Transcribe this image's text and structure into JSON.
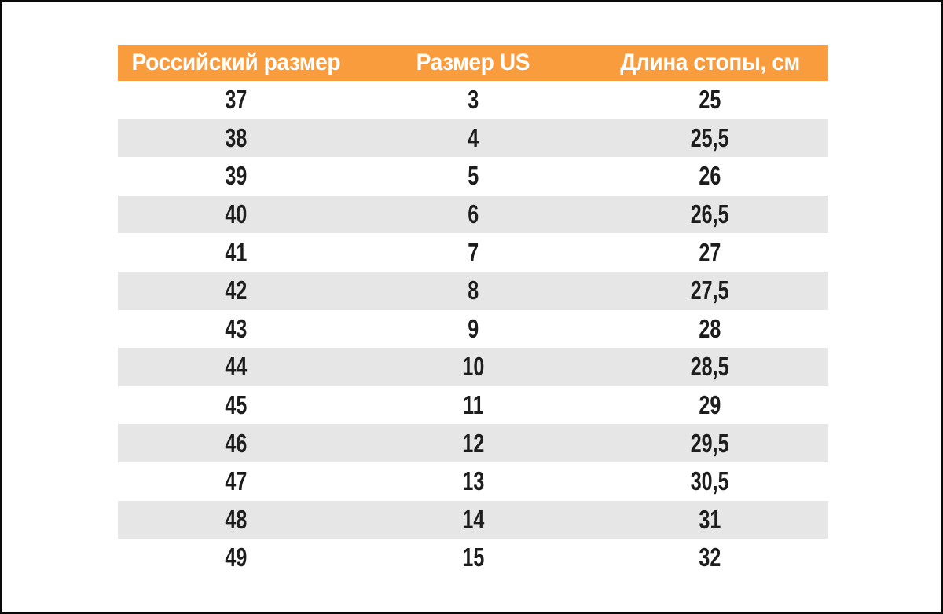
{
  "page": {
    "background_color": "#ffffff",
    "frame_color": "#0a0a0a"
  },
  "table": {
    "header": {
      "columns": [
        "Российский размер",
        "Размер US",
        "Длина стопы, см"
      ],
      "background_color": "#F99C3E",
      "text_color": "#ffffff"
    },
    "stripe_color": "#E7E6E6",
    "text_color": "#1d1d1d",
    "rows": [
      [
        "37",
        "3",
        "25"
      ],
      [
        "38",
        "4",
        "25,5"
      ],
      [
        "39",
        "5",
        "26"
      ],
      [
        "40",
        "6",
        "26,5"
      ],
      [
        "41",
        "7",
        "27"
      ],
      [
        "42",
        "8",
        "27,5"
      ],
      [
        "43",
        "9",
        "28"
      ],
      [
        "44",
        "10",
        "28,5"
      ],
      [
        "45",
        "11",
        "29"
      ],
      [
        "46",
        "12",
        "29,5"
      ],
      [
        "47",
        "13",
        "30,5"
      ],
      [
        "48",
        "14",
        "31"
      ],
      [
        "49",
        "15",
        "32"
      ]
    ]
  },
  "chart_data": {
    "type": "table",
    "columns": [
      "Российский размер",
      "Размер US",
      "Длина стопы, см"
    ],
    "rows": [
      [
        "37",
        "3",
        "25"
      ],
      [
        "38",
        "4",
        "25,5"
      ],
      [
        "39",
        "5",
        "26"
      ],
      [
        "40",
        "6",
        "26,5"
      ],
      [
        "41",
        "7",
        "27"
      ],
      [
        "42",
        "8",
        "27,5"
      ],
      [
        "43",
        "9",
        "28"
      ],
      [
        "44",
        "10",
        "28,5"
      ],
      [
        "45",
        "11",
        "29"
      ],
      [
        "46",
        "12",
        "29,5"
      ],
      [
        "47",
        "13",
        "30,5"
      ],
      [
        "48",
        "14",
        "31"
      ],
      [
        "49",
        "15",
        "32"
      ]
    ],
    "layout": {
      "header_background": "#F99C3E",
      "row_banding": [
        "#ffffff",
        "#E7E6E6"
      ],
      "first_data_row_background": "#ffffff",
      "grid": false
    }
  }
}
